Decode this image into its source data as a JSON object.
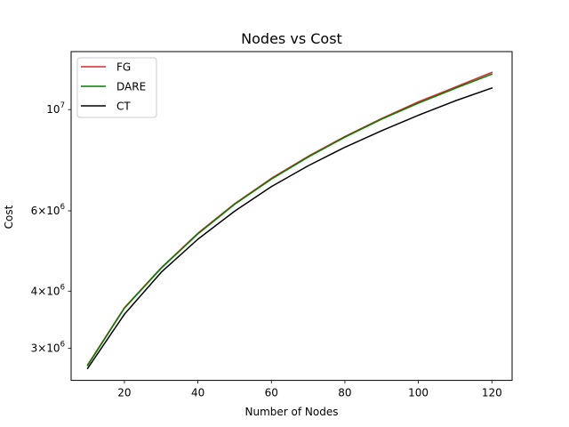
{
  "chart_data": {
    "type": "line",
    "title": "Nodes vs Cost",
    "xlabel": "Number of Nodes",
    "ylabel": "Cost",
    "y_scale": "log",
    "xlim": [
      5.5,
      125.5
    ],
    "ylim": [
      2550000,
      13400000
    ],
    "x_ticks": [
      20,
      40,
      60,
      80,
      100,
      120
    ],
    "y_ticks": [
      {
        "value": 3000000,
        "mantissa": "3",
        "base": "10",
        "exp": "6"
      },
      {
        "value": 4000000,
        "mantissa": "4",
        "base": "10",
        "exp": "6"
      },
      {
        "value": 6000000,
        "mantissa": "6",
        "base": "10",
        "exp": "6"
      },
      {
        "value": 10000000,
        "mantissa": "",
        "base": "10",
        "exp": "7"
      }
    ],
    "grid": false,
    "legend_position": "upper left",
    "x": [
      10,
      20,
      30,
      40,
      50,
      60,
      70,
      80,
      90,
      100,
      110,
      120
    ],
    "series": [
      {
        "name": "FG",
        "color": "#d62728",
        "values": [
          2760000,
          3680000,
          4500000,
          5360000,
          6220000,
          7070000,
          7900000,
          8730000,
          9560000,
          10400000,
          11200000,
          12070000
        ]
      },
      {
        "name": "DARE",
        "color": "#008000",
        "values": [
          2750000,
          3670000,
          4490000,
          5340000,
          6200000,
          7040000,
          7870000,
          8700000,
          9530000,
          10330000,
          11130000,
          11960000
        ]
      },
      {
        "name": "CT",
        "color": "#000000",
        "values": [
          2710000,
          3560000,
          4400000,
          5200000,
          5990000,
          6780000,
          7530000,
          8270000,
          8990000,
          9720000,
          10450000,
          11150000
        ]
      }
    ]
  }
}
